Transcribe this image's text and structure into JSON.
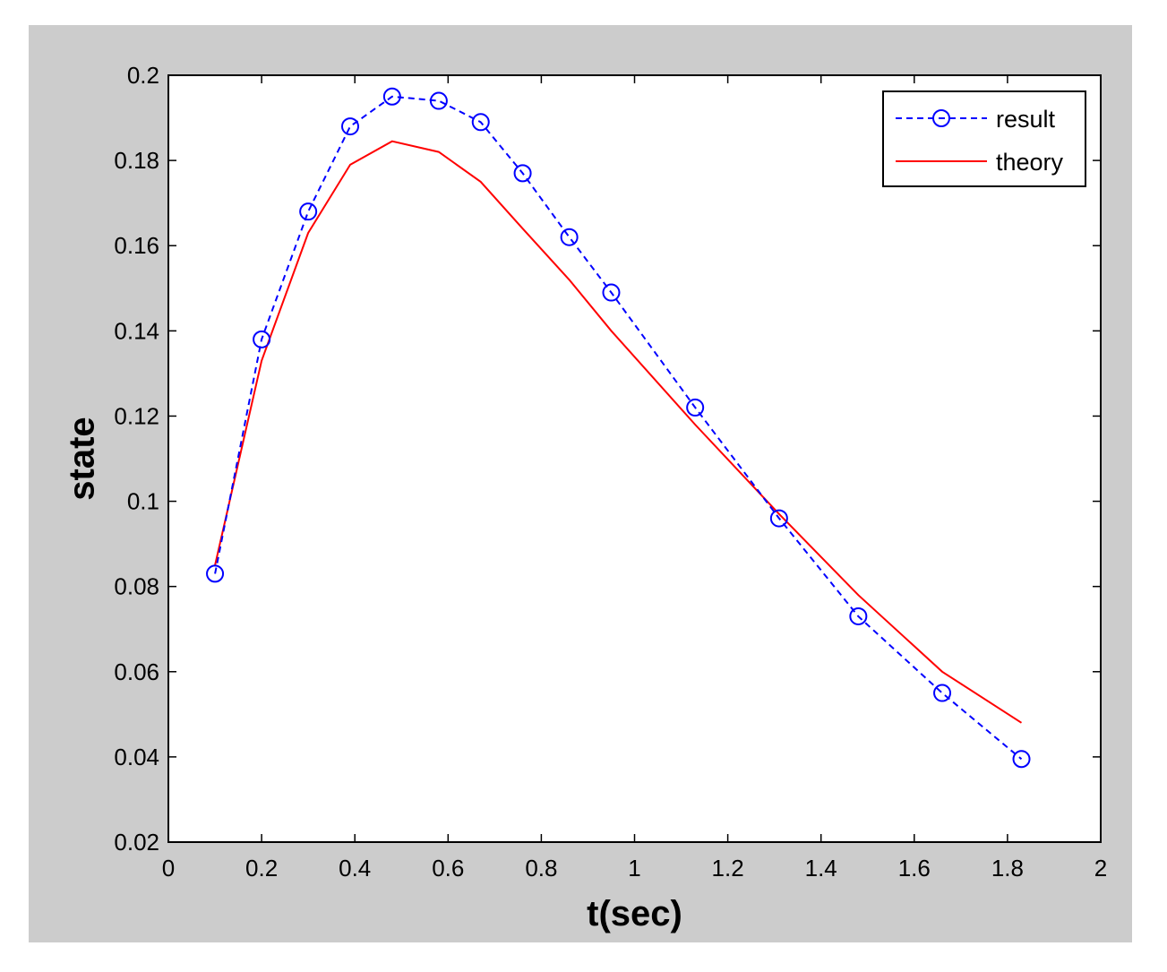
{
  "chart_data": {
    "type": "line",
    "xlabel": "t(sec)",
    "ylabel": "state",
    "xlim": [
      0,
      2
    ],
    "ylim": [
      0.02,
      0.2
    ],
    "xticks": [
      "0",
      "0.2",
      "0.4",
      "0.6",
      "0.8",
      "1",
      "1.2",
      "1.4",
      "1.6",
      "1.8",
      "2"
    ],
    "yticks": [
      "0.02",
      "0.04",
      "0.06",
      "0.08",
      "0.1",
      "0.12",
      "0.14",
      "0.16",
      "0.18",
      "0.2"
    ],
    "grid": false,
    "legend_position": "top-right",
    "series": [
      {
        "name": "result",
        "style": "dashed-circle-markers",
        "color": "#0000ff",
        "x": [
          0.1,
          0.2,
          0.3,
          0.39,
          0.48,
          0.58,
          0.67,
          0.76,
          0.86,
          0.95,
          1.13,
          1.31,
          1.48,
          1.66,
          1.83
        ],
        "y": [
          0.083,
          0.138,
          0.168,
          0.188,
          0.195,
          0.194,
          0.189,
          0.177,
          0.162,
          0.149,
          0.122,
          0.096,
          0.073,
          0.055,
          0.0395
        ]
      },
      {
        "name": "theory",
        "style": "solid",
        "color": "#ff0000",
        "x": [
          0.1,
          0.2,
          0.3,
          0.39,
          0.48,
          0.58,
          0.67,
          0.76,
          0.86,
          0.95,
          1.13,
          1.31,
          1.48,
          1.66,
          1.83
        ],
        "y": [
          0.085,
          0.133,
          0.163,
          0.179,
          0.1845,
          0.182,
          0.175,
          0.164,
          0.152,
          0.14,
          0.118,
          0.097,
          0.078,
          0.06,
          0.048
        ]
      }
    ]
  }
}
